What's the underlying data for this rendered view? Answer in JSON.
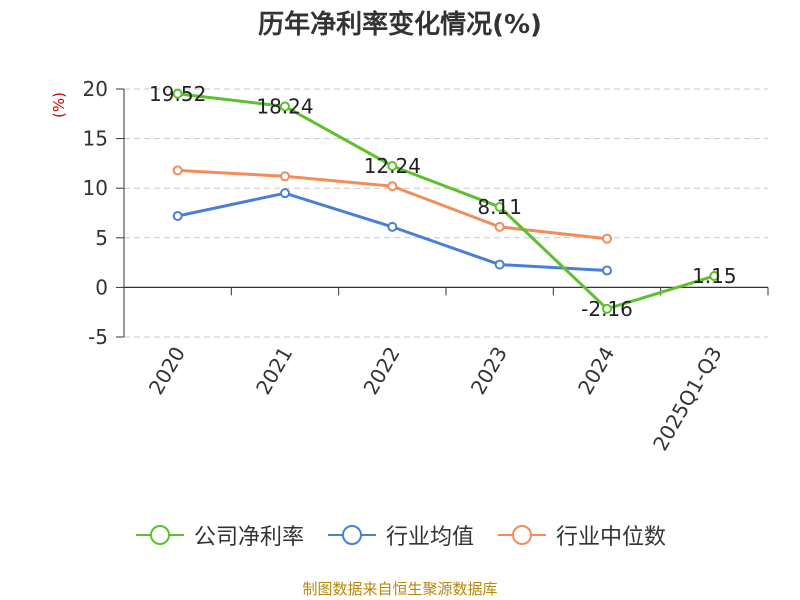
{
  "chart_data": {
    "type": "line",
    "title": "历年净利率变化情况(%)",
    "ylabel": "(%)",
    "xlabel": "",
    "categories": [
      "2020",
      "2021",
      "2022",
      "2023",
      "2024",
      "2025Q1-Q3"
    ],
    "ylim": [
      -5,
      20
    ],
    "yticks": [
      20,
      15,
      10,
      5,
      0,
      -5
    ],
    "ytick_labels": [
      "20",
      "15",
      "10",
      "5",
      "0",
      "-5"
    ],
    "grid": true,
    "legend_position": "bottom",
    "series": [
      {
        "name": "公司净利率",
        "color": "#5cc12d",
        "values": [
          19.52,
          18.24,
          12.24,
          8.11,
          -2.16,
          1.15
        ],
        "labels": [
          "19.52",
          "18.24",
          "12.24",
          "8.11",
          "-2.16",
          "1.15"
        ]
      },
      {
        "name": "行业均值",
        "color": "#4a7fd6",
        "values": [
          7.2,
          9.5,
          6.1,
          2.3,
          1.7,
          null
        ]
      },
      {
        "name": "行业中位数",
        "color": "#f28c5a",
        "values": [
          11.8,
          11.2,
          10.2,
          6.1,
          4.9,
          null
        ]
      }
    ],
    "source": "制图数据来自恒生聚源数据库"
  }
}
